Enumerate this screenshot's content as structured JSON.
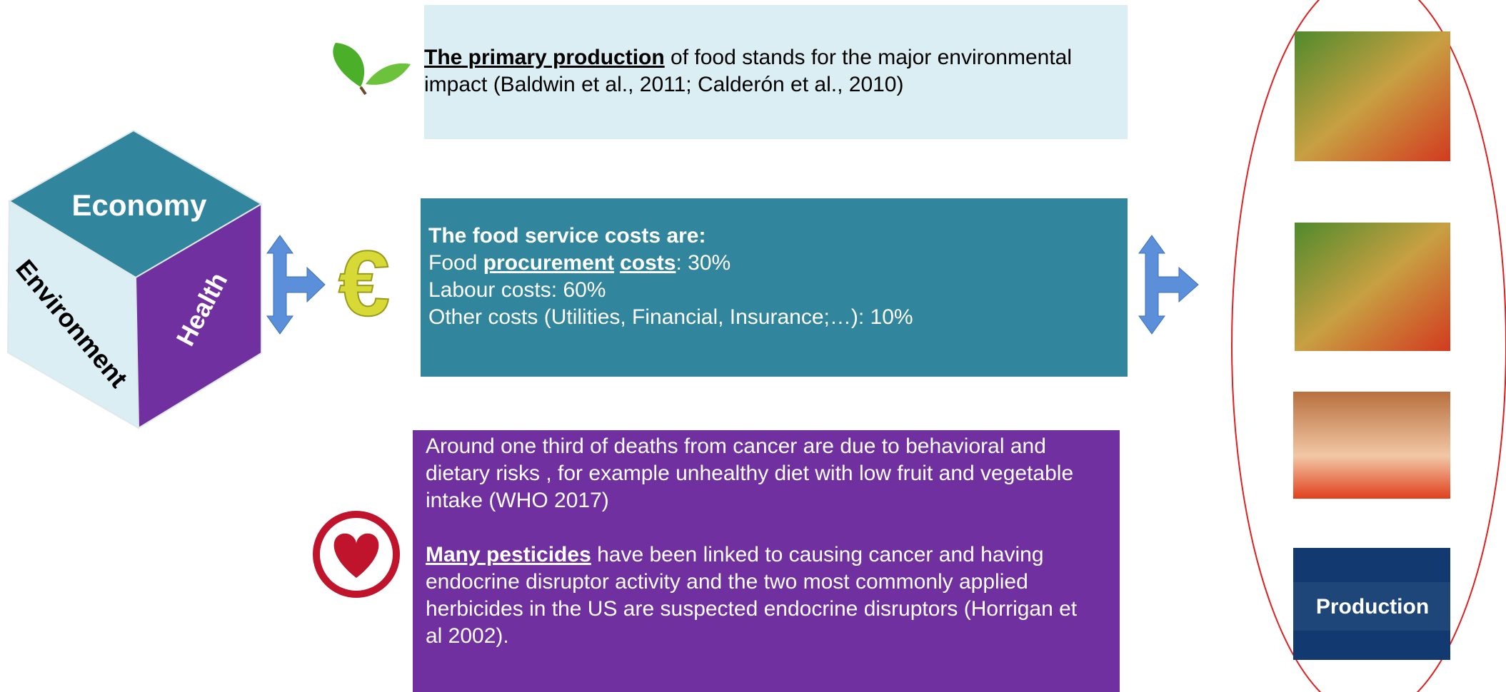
{
  "cube": {
    "top": "Economy",
    "left": "Environment",
    "right": "Health"
  },
  "environment_box": {
    "emphasis": "The primary production",
    "text": " of food stands for the major environmental impact (Baldwin et al., 2011; Calderón et al., 2010)"
  },
  "economy_box": {
    "title": "The food service costs are:",
    "procurement_line": [
      "Food ",
      "procurement",
      "costs",
      ": 30%"
    ],
    "lines": [
      "Labour costs: 60%",
      "Other costs (Utilities, Financial, Insurance;…): 10%"
    ]
  },
  "health_box": {
    "paragraph": "Around one third of deaths from cancer are due to behavioral and dietary risks , for example unhealthy diet with low fruit and vegetable intake (WHO 2017)",
    "emphasis": "Many pesticides",
    "text": " have been linked to causing cancer and having endocrine disruptor activity and the two most commonly applied herbicides in the US are suspected endocrine disruptors (Horrigan et al 2002)."
  },
  "images": {
    "production_label": "Production"
  }
}
